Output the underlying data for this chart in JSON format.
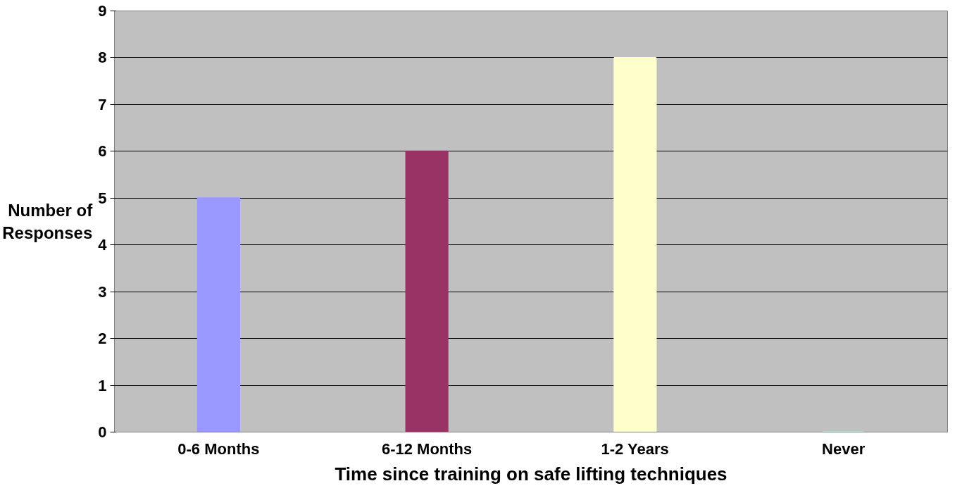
{
  "chart_data": {
    "type": "bar",
    "xlabel": "Time since training on safe lifting techniques",
    "ylabel": "Number of Responses",
    "categories": [
      "0-6 Months",
      "6-12 Months",
      "1-2 Years",
      "Never"
    ],
    "values": [
      5,
      6,
      8,
      0
    ],
    "colors": [
      "#9999ff",
      "#993366",
      "#ffffcc",
      "#ccffff"
    ],
    "ylim": [
      0,
      9
    ],
    "yticks": [
      0,
      1,
      2,
      3,
      4,
      5,
      6,
      7,
      8,
      9
    ],
    "grid": "y"
  }
}
